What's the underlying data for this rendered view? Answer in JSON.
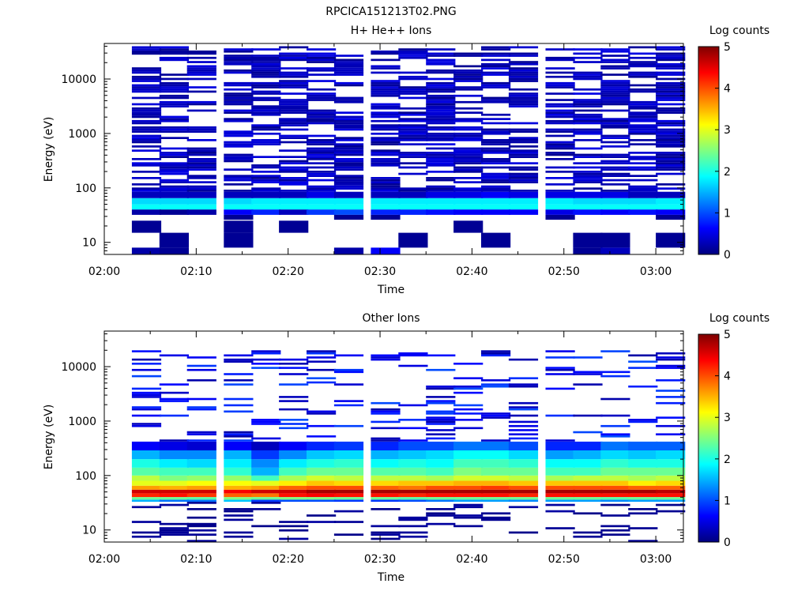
{
  "file_title": "RPCICA151213T02.PNG",
  "chart_data": [
    {
      "type": "heatmap",
      "title": "H+ He++ Ions",
      "xlabel": "Time",
      "ylabel": "Energy (eV)",
      "x_ticks": [
        "02:00",
        "02:10",
        "02:20",
        "02:30",
        "02:40",
        "02:50",
        "03:00"
      ],
      "x_range": [
        "02:00",
        "03:03"
      ],
      "y_scale": "log",
      "y_ticks": [
        10,
        100,
        1000,
        10000
      ],
      "y_tick_labels": [
        "10",
        "100",
        "1000",
        "10000"
      ],
      "y_range": [
        6,
        45000
      ],
      "colorbar": {
        "label": "Log counts",
        "range": [
          0,
          5
        ],
        "ticks": [
          "0",
          "1",
          "2",
          "3",
          "4",
          "5"
        ],
        "colormap": "jet"
      },
      "time_bins": [
        "02:03",
        "02:06",
        "02:09",
        "02:13",
        "02:16",
        "02:19",
        "02:22",
        "02:25",
        "02:29",
        "02:32",
        "02:35",
        "02:38",
        "02:41",
        "02:44",
        "02:48",
        "02:51",
        "02:54",
        "02:57",
        "03:00"
      ],
      "bin_width_min": 3.2,
      "energy_bands": [
        {
          "emin": 40,
          "emax": 50,
          "log_counts": [
            1.9,
            1.9,
            1.9,
            1.9,
            1.9,
            1.9,
            1.9,
            1.9,
            1.9,
            1.9,
            1.9,
            1.9,
            1.9,
            1.9,
            1.9,
            1.9,
            1.9,
            1.9,
            1.9
          ]
        },
        {
          "emin": 50,
          "emax": 65,
          "log_counts": [
            1.7,
            1.7,
            1.7,
            1.7,
            1.8,
            1.8,
            1.8,
            1.8,
            1.8,
            1.8,
            1.8,
            1.8,
            1.8,
            1.8,
            1.8,
            1.7,
            1.7,
            1.7,
            1.8
          ]
        },
        {
          "emin": 65,
          "emax": 85,
          "log_counts": [
            0.3,
            0.3,
            0.3,
            0.3,
            0.3,
            0.3,
            0.5,
            0.3,
            0.3,
            0.3,
            0.5,
            0.5,
            0.6,
            0.5,
            0.5,
            0.5,
            0.5,
            0.3,
            0.3
          ]
        },
        {
          "emin": 32,
          "emax": 40,
          "log_counts": [
            0.2,
            0.1,
            0.2,
            0.6,
            0.8,
            0.3,
            0.9,
            1.0,
            0.8,
            0.8,
            0.7,
            0.6,
            0.6,
            0.6,
            0.5,
            0.7,
            0.6,
            0.7,
            0.6
          ]
        },
        {
          "emin": 26,
          "emax": 32,
          "log_counts": [
            0,
            0,
            0,
            0.1,
            0,
            0,
            0,
            0.1,
            0.1,
            0,
            0,
            0,
            0,
            0,
            0.1,
            0,
            0,
            0,
            0.1
          ]
        },
        {
          "emin": 15,
          "emax": 25,
          "log_counts": [
            0.1,
            0,
            0,
            0.1,
            0,
            0.1,
            0,
            0,
            0,
            0,
            0,
            0.1,
            0,
            0,
            0,
            0,
            0,
            0,
            0
          ]
        },
        {
          "emin": 8,
          "emax": 15,
          "log_counts": [
            0,
            0.1,
            0,
            0.1,
            0,
            0,
            0,
            0,
            0,
            0.1,
            0,
            0,
            0.1,
            0,
            0,
            0.1,
            0.1,
            0,
            0.1
          ]
        },
        {
          "emin": 6,
          "emax": 8,
          "log_counts": [
            0.2,
            0.1,
            0,
            0,
            0,
            0,
            0,
            0.2,
            0.6,
            0,
            0,
            0,
            0,
            0,
            0,
            0.1,
            0.3,
            0,
            0
          ]
        },
        {
          "emin": 85,
          "emax": 40000,
          "log_counts": [
            0.3,
            0.3,
            0.3,
            0.3,
            0.3,
            0.3,
            0.3,
            0.3,
            0.3,
            0.3,
            0.3,
            0.3,
            0.3,
            0.3,
            0.3,
            0.3,
            0.3,
            0.3,
            0.3
          ],
          "sparse": true
        }
      ]
    },
    {
      "type": "heatmap",
      "title": "Other Ions",
      "xlabel": "Time",
      "ylabel": "Energy (eV)",
      "x_ticks": [
        "02:00",
        "02:10",
        "02:20",
        "02:30",
        "02:40",
        "02:50",
        "03:00"
      ],
      "x_range": [
        "02:00",
        "03:03"
      ],
      "y_scale": "log",
      "y_ticks": [
        10,
        100,
        1000,
        10000
      ],
      "y_tick_labels": [
        "10",
        "100",
        "1000",
        "10000"
      ],
      "y_range": [
        6,
        45000
      ],
      "colorbar": {
        "label": "Log counts",
        "range": [
          0,
          5
        ],
        "ticks": [
          "0",
          "1",
          "2",
          "3",
          "4",
          "5"
        ],
        "colormap": "jet"
      },
      "time_bins": [
        "02:03",
        "02:06",
        "02:09",
        "02:13",
        "02:16",
        "02:19",
        "02:22",
        "02:25",
        "02:29",
        "02:32",
        "02:35",
        "02:38",
        "02:41",
        "02:44",
        "02:48",
        "02:51",
        "02:54",
        "02:57",
        "03:00"
      ],
      "bin_width_min": 3.2,
      "energy_bands": [
        {
          "emin": 47,
          "emax": 55,
          "log_counts": [
            4.6,
            4.6,
            4.6,
            4.4,
            4.6,
            4.6,
            4.8,
            4.8,
            4.8,
            4.8,
            4.8,
            4.8,
            4.8,
            4.8,
            4.8,
            4.8,
            4.8,
            4.8,
            4.7
          ]
        },
        {
          "emin": 40,
          "emax": 47,
          "log_counts": [
            4.2,
            4.3,
            4.1,
            3.9,
            3.8,
            4.3,
            4.4,
            4.3,
            4.3,
            4.2,
            4.3,
            4.3,
            4.3,
            4.2,
            4.3,
            4.3,
            4.3,
            4.3,
            4.3
          ]
        },
        {
          "emin": 55,
          "emax": 65,
          "log_counts": [
            3.6,
            3.5,
            3.6,
            3.5,
            3.6,
            3.9,
            4.0,
            4.0,
            3.9,
            3.8,
            4.0,
            4.0,
            4.1,
            4.0,
            4.0,
            4.0,
            4.0,
            3.9,
            3.9
          ]
        },
        {
          "emin": 65,
          "emax": 80,
          "log_counts": [
            3.0,
            3.0,
            3.1,
            3.1,
            3.0,
            3.2,
            3.4,
            3.3,
            3.3,
            3.4,
            3.4,
            3.5,
            3.5,
            3.4,
            3.4,
            3.4,
            3.4,
            3.2,
            3.3
          ]
        },
        {
          "emin": 80,
          "emax": 100,
          "log_counts": [
            2.8,
            2.5,
            2.6,
            2.6,
            2.2,
            2.7,
            2.9,
            2.8,
            2.8,
            2.8,
            2.7,
            2.9,
            2.9,
            2.8,
            2.7,
            2.8,
            2.8,
            2.7,
            2.8
          ]
        },
        {
          "emin": 100,
          "emax": 140,
          "log_counts": [
            2.3,
            2.2,
            2.2,
            2.1,
            1.5,
            2.2,
            2.4,
            2.4,
            2.3,
            2.3,
            2.2,
            2.5,
            2.4,
            2.4,
            2.2,
            2.2,
            2.4,
            2.4,
            2.4
          ]
        },
        {
          "emin": 140,
          "emax": 200,
          "log_counts": [
            2.0,
            1.8,
            1.7,
            1.8,
            1.3,
            1.8,
            2.0,
            2.1,
            1.9,
            2.0,
            1.9,
            2.2,
            2.2,
            2.1,
            1.9,
            1.9,
            2.1,
            2.0,
            2.0
          ]
        },
        {
          "emin": 200,
          "emax": 290,
          "log_counts": [
            1.5,
            1.3,
            1.3,
            1.5,
            0.9,
            1.3,
            1.6,
            1.7,
            1.5,
            1.6,
            1.7,
            1.9,
            1.9,
            1.7,
            1.4,
            1.5,
            1.7,
            1.6,
            1.7
          ]
        },
        {
          "emin": 290,
          "emax": 420,
          "log_counts": [
            0.6,
            0.5,
            0.4,
            0.6,
            0.3,
            0.6,
            0.8,
            0.9,
            0.8,
            1.0,
            1.0,
            1.2,
            1.2,
            1.0,
            0.8,
            0.8,
            1.2,
            1.1,
            1.1
          ]
        },
        {
          "emin": 36,
          "emax": 40,
          "log_counts": [
            2.4,
            2.4,
            2.3,
            2.5,
            2.4,
            2.5,
            2.5,
            2.4,
            2.4,
            2.3,
            2.4,
            2.4,
            2.4,
            2.4,
            2.4,
            2.4,
            2.3,
            2.4,
            2.4
          ]
        },
        {
          "emin": 33,
          "emax": 36,
          "log_counts": [
            1.5,
            1.2,
            1.2,
            1.6,
            0.9,
            1.0,
            1.0,
            0.9,
            0.9,
            1.0,
            1.2,
            1.4,
            1.4,
            1.3,
            1.4,
            1.4,
            1.3,
            1.4,
            1.4
          ]
        },
        {
          "emin": 6,
          "emax": 33,
          "log_counts": [
            0.1,
            0.1,
            0.1,
            0.1,
            0.1,
            0.1,
            0.1,
            0.1,
            0.1,
            0.1,
            0.1,
            0.1,
            0.1,
            0.1,
            0.1,
            0.1,
            0.1,
            0.1,
            0.1
          ],
          "sparse": true
        },
        {
          "emin": 420,
          "emax": 20000,
          "log_counts": [
            0.6,
            0.6,
            0.6,
            0.6,
            0.6,
            0.6,
            0.6,
            0.6,
            0.6,
            0.6,
            0.6,
            0.6,
            0.6,
            0.6,
            0.6,
            0.6,
            0.6,
            0.6,
            0.6
          ],
          "sparse": true
        }
      ]
    }
  ]
}
